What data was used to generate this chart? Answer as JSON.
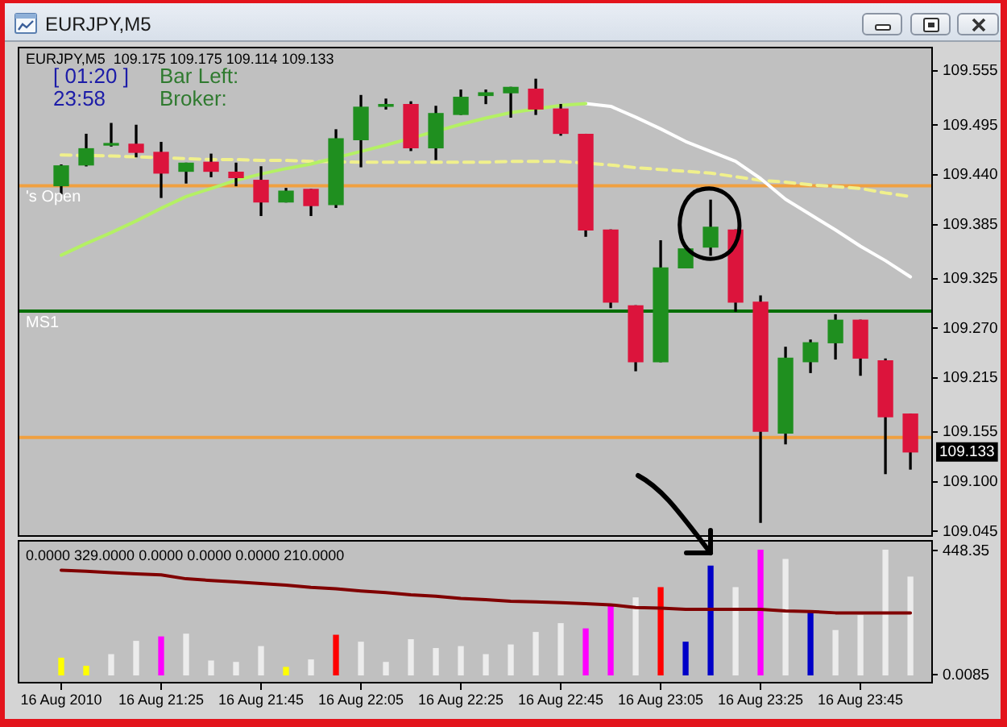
{
  "chart_data": [
    {
      "type": "candlestick",
      "title": "EURJPY,M5",
      "subtitle": "EURJPY,M5  109.175 109.175 109.114 109.133",
      "categories": [
        null,
        null,
        null,
        null,
        null,
        null,
        null,
        null,
        null,
        null,
        null,
        null,
        null,
        null,
        null,
        null,
        null,
        null,
        null,
        null,
        null,
        null,
        null,
        null,
        null,
        null,
        null,
        null,
        null,
        null,
        null,
        null,
        null,
        null,
        null
      ],
      "tick_labels": "y",
      "ylim": [
        109.039,
        109.582
      ],
      "yticks": [
        109.555,
        109.495,
        {
          "value": 109.44,
          "label": "109.440"
        },
        109.385,
        109.325,
        {
          "value": 109.27,
          "label": "109.270"
        },
        109.215,
        109.155,
        {
          "value": 109.1,
          "label": "109.100"
        },
        109.045
      ],
      "ohlc": [
        [
          109.428,
          109.451,
          109.419,
          109.45
        ],
        [
          109.451,
          109.485,
          109.45,
          109.469
        ],
        [
          109.473,
          109.497,
          109.472,
          109.473
        ],
        [
          109.474,
          109.495,
          109.46,
          109.465
        ],
        [
          109.465,
          109.476,
          109.415,
          109.442
        ],
        [
          109.444,
          109.453,
          109.431,
          109.453
        ],
        [
          109.454,
          109.463,
          109.438,
          109.444
        ],
        [
          109.443,
          109.453,
          109.428,
          109.437
        ],
        [
          109.434,
          109.449,
          109.395,
          109.41
        ],
        [
          109.41,
          109.425,
          109.41,
          109.422
        ],
        [
          109.424,
          109.424,
          109.395,
          109.406
        ],
        [
          109.407,
          109.49,
          109.404,
          109.48
        ],
        [
          109.479,
          109.528,
          109.449,
          109.515
        ],
        [
          109.516,
          109.524,
          109.513,
          109.518
        ],
        [
          109.518,
          109.521,
          109.467,
          109.47
        ],
        [
          109.47,
          109.516,
          109.457,
          109.508
        ],
        [
          109.507,
          109.534,
          109.507,
          109.526
        ],
        [
          109.528,
          109.534,
          109.519,
          109.531
        ],
        [
          109.531,
          109.537,
          109.504,
          109.537
        ],
        [
          109.535,
          109.546,
          109.507,
          109.513
        ],
        [
          109.513,
          109.518,
          109.484,
          109.486
        ],
        [
          109.485,
          109.485,
          109.372,
          109.379
        ],
        [
          109.379,
          109.379,
          109.293,
          109.299
        ],
        [
          109.295,
          109.295,
          109.223,
          109.233
        ],
        [
          109.233,
          109.367,
          109.233,
          109.337
        ],
        [
          109.337,
          109.358,
          109.337,
          109.358
        ],
        [
          109.36,
          109.412,
          109.351,
          109.382
        ],
        [
          109.379,
          109.379,
          109.289,
          109.299
        ],
        [
          109.299,
          109.306,
          109.055,
          109.156
        ],
        [
          109.154,
          109.249,
          109.142,
          109.237
        ],
        [
          109.233,
          109.257,
          109.221,
          109.254
        ],
        [
          109.254,
          109.285,
          109.236,
          109.279
        ],
        [
          109.279,
          109.279,
          109.218,
          109.237
        ],
        [
          109.234,
          109.236,
          109.109,
          109.172
        ],
        [
          109.175,
          109.175,
          109.114,
          109.133
        ]
      ],
      "colors": [
        "#1f8f1f",
        "#1f8f1f",
        "#1f8f1f",
        "#dc143c",
        "#dc143c",
        "#1f8f1f",
        "#dc143c",
        "#dc143c",
        "#dc143c",
        "#1f8f1f",
        "#dc143c",
        "#1f8f1f",
        "#1f8f1f",
        "#1f8f1f",
        "#dc143c",
        "#1f8f1f",
        "#1f8f1f",
        "#1f8f1f",
        "#1f8f1f",
        "#dc143c",
        "#dc143c",
        "#dc143c",
        "#dc143c",
        "#dc143c",
        "#1f8f1f",
        "#1f8f1f",
        "#1f8f1f",
        "#dc143c",
        "#dc143c",
        "#1f8f1f",
        "#1f8f1f",
        "#1f8f1f",
        "#dc143c",
        "#dc143c",
        "#dc143c"
      ],
      "series": [
        {
          "type": "line",
          "color": "#b4f064",
          "values": [
            109.351,
            109.364,
            109.376,
            109.389,
            109.403,
            109.416,
            109.425,
            109.434,
            109.441,
            109.447,
            109.452,
            null,
            109.466,
            109.473,
            null,
            null,
            109.496,
            109.503,
            109.509,
            null,
            109.517,
            109.519,
            null,
            null,
            null,
            null,
            null,
            null,
            null,
            null,
            null,
            null,
            null,
            null,
            null
          ]
        },
        {
          "type": "line",
          "color": "#ffffff",
          "values": [
            null,
            null,
            null,
            null,
            null,
            null,
            null,
            null,
            null,
            null,
            null,
            null,
            null,
            null,
            null,
            null,
            null,
            null,
            null,
            null,
            null,
            109.519,
            109.516,
            109.504,
            109.491,
            109.477,
            109.466,
            109.455,
            109.436,
            109.413,
            109.396,
            109.379,
            109.361,
            109.345,
            109.327
          ]
        },
        {
          "type": "line",
          "color": "#f0f08c",
          "line_style": "dashed",
          "values": [
            109.462,
            null,
            109.461,
            109.46,
            null,
            109.458,
            109.457,
            109.457,
            109.456,
            109.456,
            109.455,
            null,
            109.454,
            109.454,
            109.454,
            109.454,
            109.454,
            109.454,
            109.455,
            109.455,
            109.455,
            null,
            109.451,
            109.448,
            109.446,
            109.444,
            109.442,
            109.438,
            109.434,
            109.432,
            109.429,
            109.427,
            109.425,
            109.42,
            109.416
          ]
        }
      ],
      "ref_lines": [
        {
          "axis": "y",
          "value": 109.428,
          "label": "'s Open",
          "color": "#f0a040"
        },
        {
          "axis": "y",
          "value": 109.289,
          "label": "MS1",
          "color": "#006e00"
        },
        {
          "axis": "y",
          "value": 109.149,
          "color": "#f0a040"
        }
      ],
      "annotations": [
        "[ 01:20 ]",
        "23:58",
        "Bar Left:",
        "Broker:",
        "109.133"
      ]
    },
    {
      "type": "bar",
      "title": "0.0000 329.0000 0.0000 0.0000 0.0000 210.0000",
      "categories": [
        "16 Aug 2010",
        null,
        null,
        null,
        "16 Aug 21:25",
        null,
        null,
        null,
        "16 Aug 21:45",
        null,
        null,
        null,
        "16 Aug 22:05",
        null,
        null,
        null,
        "16 Aug 22:25",
        null,
        null,
        null,
        "16 Aug 22:45",
        null,
        null,
        null,
        "16 Aug 23:05",
        null,
        null,
        null,
        "16 Aug 23:25",
        null,
        null,
        null,
        "16 Aug 23:45",
        null,
        null
      ],
      "ylim": [
        -31,
        487
      ],
      "yticks": [
        448.35,
        {
          "value": 0.0085,
          "label": "0.0085"
        }
      ],
      "series": [
        {
          "colors": [
            "#ffff00",
            "#ffff00",
            "#ececec",
            "#ececec",
            "#ff00ff",
            "#ececec",
            "#ececec",
            "#ececec",
            "#ececec",
            "#ffff00",
            "#ececec",
            "#ff0000",
            "#ececec",
            "#ececec",
            "#ececec",
            "#ececec",
            "#ececec",
            "#ececec",
            "#ececec",
            "#ececec",
            "#ececec",
            "#ff00ff",
            "#ff00ff",
            "#ececec",
            "#ff0000",
            "#0000c8",
            "#0000c8",
            "#ececec",
            "#ff00ff",
            "#ececec",
            "#0000c8",
            "#ececec",
            "#ececec",
            "#ececec",
            "#ececec"
          ],
          "values": [
            60,
            31,
            73,
            121,
            137,
            147,
            50,
            45,
            102,
            27,
            54,
            143,
            118,
            45,
            127,
            95,
            102,
            73,
            108,
            153,
            185,
            166,
            247,
            278,
            315,
            118,
            393,
            315,
            450,
            417,
            224,
            160,
            214,
            450,
            353
          ]
        },
        {
          "type": "line",
          "color": "#800000",
          "values": [
            378,
            374,
            369,
            365,
            361,
            347,
            341,
            336,
            330,
            324,
            316,
            311,
            303,
            297,
            289,
            284,
            276,
            272,
            266,
            264,
            261,
            257,
            253,
            243,
            241,
            237,
            237,
            237,
            237,
            231,
            229,
            224,
            224,
            224,
            224
          ]
        }
      ]
    }
  ]
}
